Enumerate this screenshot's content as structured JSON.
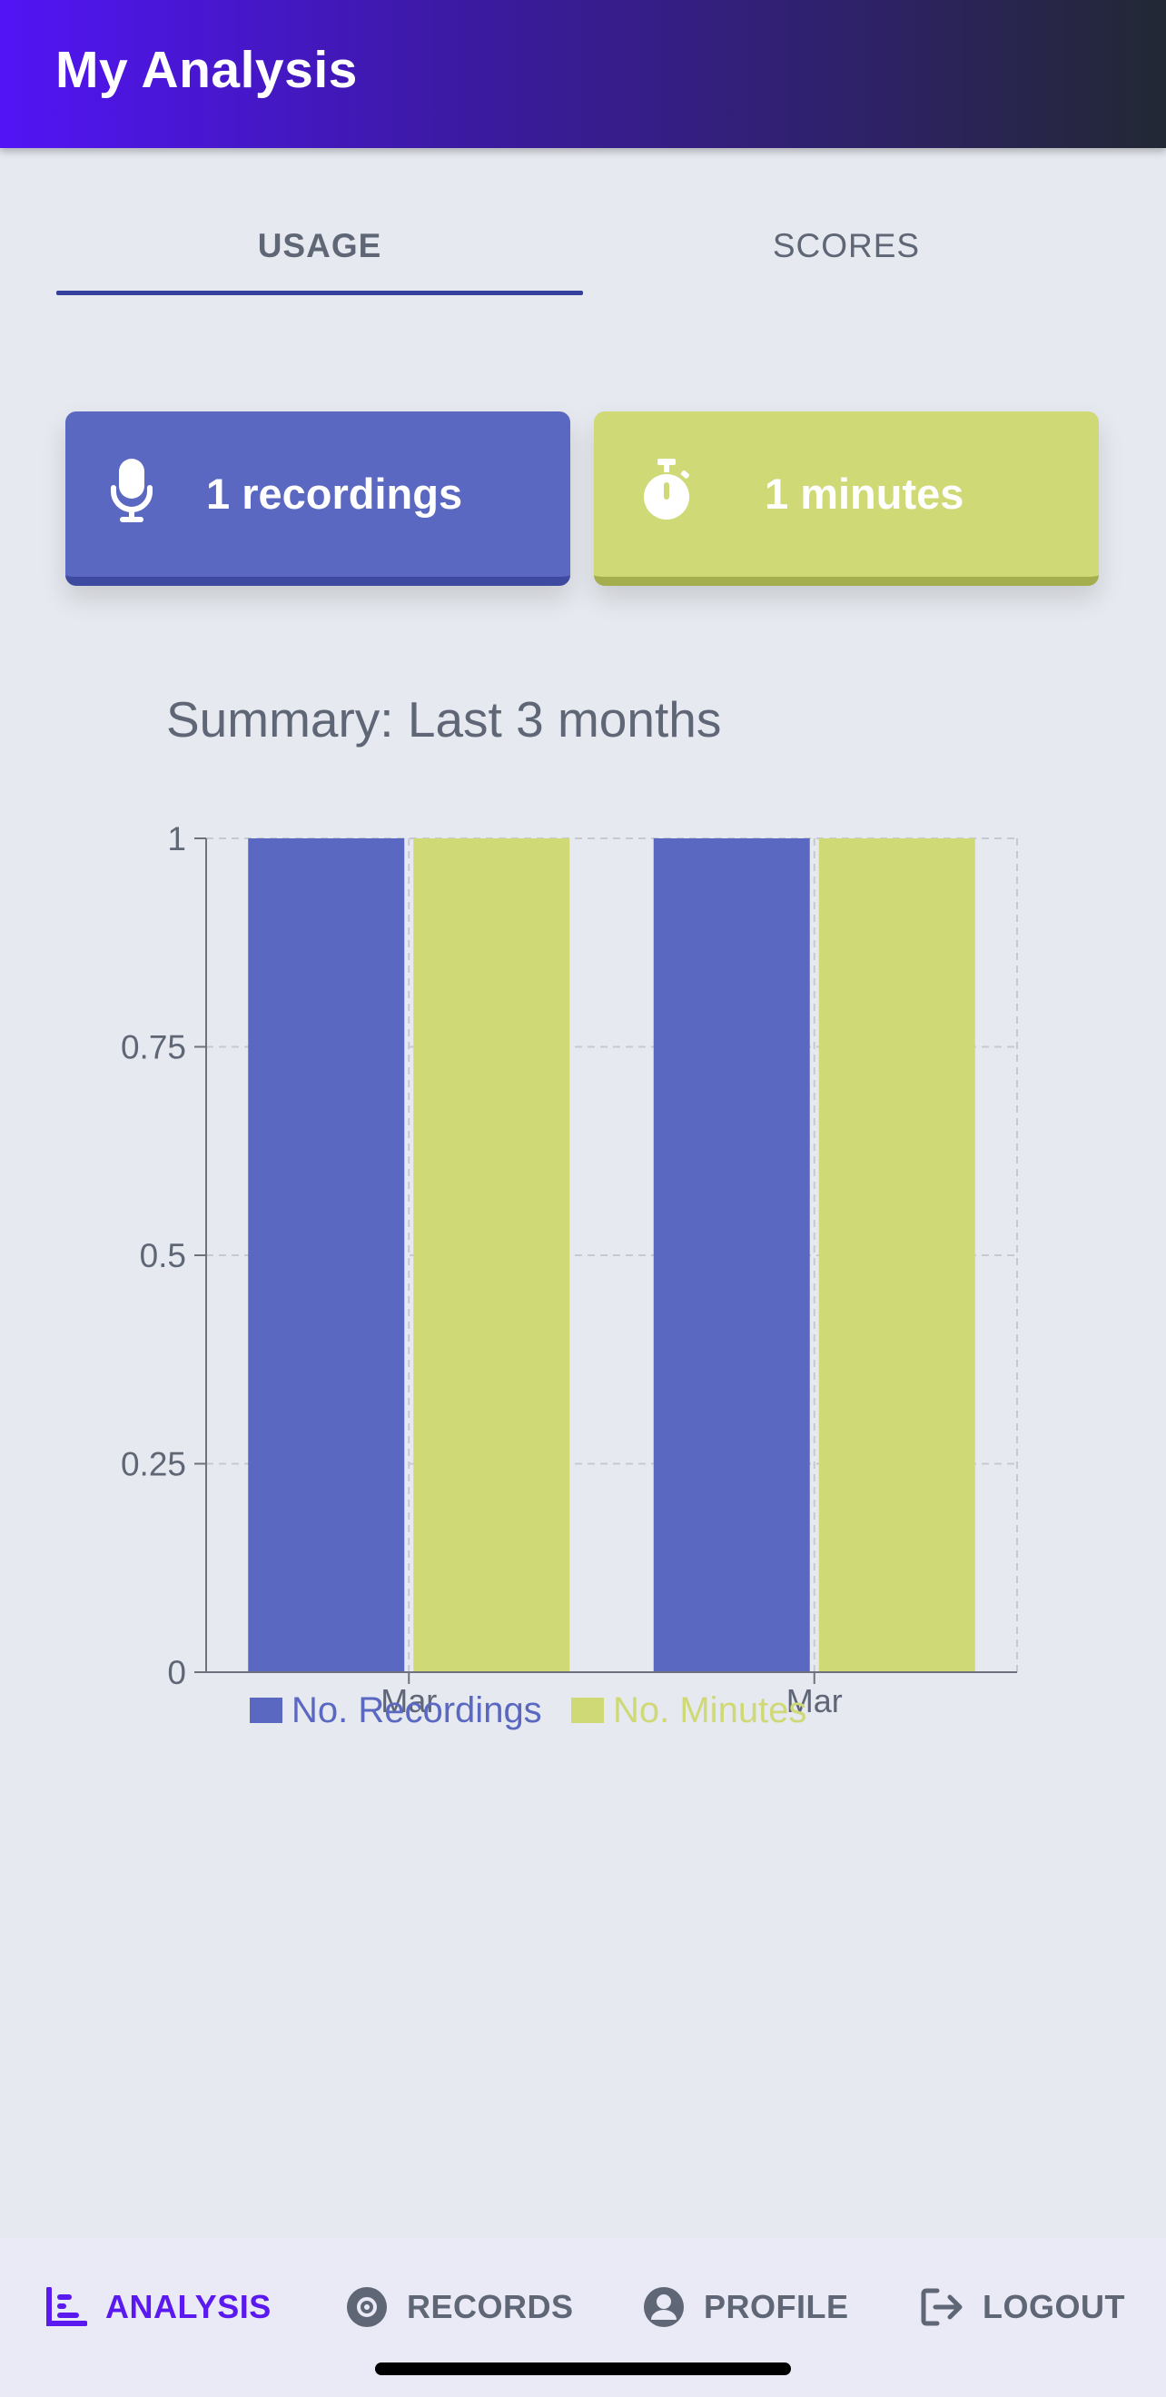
{
  "app_bar": {
    "title": "My Analysis"
  },
  "tabs": [
    {
      "label": "USAGE",
      "active": true
    },
    {
      "label": "SCORES",
      "active": false
    }
  ],
  "stats": {
    "recordings": {
      "label": "1 recordings",
      "icon": "microphone-icon",
      "color": "#5b68c1"
    },
    "minutes": {
      "label": "1 minutes",
      "icon": "stopwatch-icon",
      "color": "#cfd976"
    }
  },
  "chart_title": "Summary: Last 3 months",
  "chart_data": {
    "type": "bar",
    "categories": [
      "Mar",
      "Mar"
    ],
    "series": [
      {
        "name": "No. Recordings",
        "color": "#5b68c1",
        "values": [
          1,
          1
        ]
      },
      {
        "name": "No. Minutes",
        "color": "#cfd976",
        "values": [
          1,
          1
        ]
      }
    ],
    "ylim": [
      0,
      1
    ],
    "yticks": [
      0,
      0.25,
      0.5,
      0.75,
      1
    ],
    "ytick_labels": [
      "0",
      "0.25",
      "0.5",
      "0.75",
      "1"
    ],
    "grid": true,
    "legend_position": "bottom-left"
  },
  "bottom_nav": [
    {
      "label": "ANALYSIS",
      "icon": "bar-chart-icon",
      "active": true
    },
    {
      "label": "RECORDS",
      "icon": "disc-icon",
      "active": false
    },
    {
      "label": "PROFILE",
      "icon": "user-circle-icon",
      "active": false
    },
    {
      "label": "LOGOUT",
      "icon": "logout-icon",
      "active": false
    }
  ]
}
